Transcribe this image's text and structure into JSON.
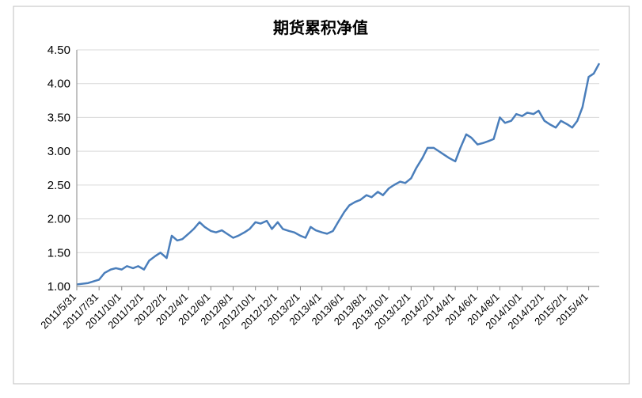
{
  "chart_data": {
    "type": "line",
    "title": "期货累积净值",
    "x": [
      "2011/6/1",
      "2011/7/1",
      "2011/7/31",
      "2011/8/15",
      "2011/9/1",
      "2011/9/15",
      "2011/10/1",
      "2011/10/15",
      "2011/11/1",
      "2011/11/15",
      "2011/12/1",
      "2011/12/15",
      "2012/1/1",
      "2012/1/15",
      "2012/2/1",
      "2012/2/15",
      "2012/3/1",
      "2012/3/15",
      "2012/4/1",
      "2012/4/15",
      "2012/5/1",
      "2012/5/15",
      "2012/6/1",
      "2012/6/15",
      "2012/7/1",
      "2012/7/15",
      "2012/8/1",
      "2012/8/15",
      "2012/9/1",
      "2012/9/15",
      "2012/10/1",
      "2012/10/15",
      "2012/11/1",
      "2012/11/15",
      "2012/12/1",
      "2012/12/15",
      "2013/1/1",
      "2013/1/15",
      "2013/2/1",
      "2013/2/15",
      "2013/3/1",
      "2013/3/15",
      "2013/4/1",
      "2013/4/15",
      "2013/5/1",
      "2013/5/15",
      "2013/6/1",
      "2013/6/15",
      "2013/7/1",
      "2013/7/15",
      "2013/8/1",
      "2013/8/15",
      "2013/9/1",
      "2013/9/15",
      "2013/10/1",
      "2013/10/15",
      "2013/11/1",
      "2013/11/15",
      "2013/12/1",
      "2013/12/15",
      "2014/1/1",
      "2014/1/15",
      "2014/2/1",
      "2014/2/15",
      "2014/3/1",
      "2014/3/15",
      "2014/4/1",
      "2014/4/15",
      "2014/5/1",
      "2014/5/15",
      "2014/6/1",
      "2014/6/15",
      "2014/7/1",
      "2014/7/15",
      "2014/8/1",
      "2014/8/15",
      "2014/9/1",
      "2014/9/15",
      "2014/10/1",
      "2014/10/15",
      "2014/11/1",
      "2014/11/15",
      "2014/12/1",
      "2014/12/15",
      "2015/1/1",
      "2015/1/15",
      "2015/2/1",
      "2015/2/15",
      "2015/3/1",
      "2015/3/15",
      "2015/4/1",
      "2015/4/15",
      "2015/4/30"
    ],
    "series": [
      {
        "name": "期货累积净值",
        "color": "#4a7ebb",
        "values": [
          1.03,
          1.05,
          1.1,
          1.2,
          1.25,
          1.27,
          1.25,
          1.3,
          1.27,
          1.3,
          1.25,
          1.38,
          1.45,
          1.5,
          1.42,
          1.75,
          1.68,
          1.7,
          1.78,
          1.85,
          1.95,
          1.88,
          1.82,
          1.8,
          1.83,
          1.78,
          1.72,
          1.75,
          1.8,
          1.85,
          1.95,
          1.93,
          1.97,
          1.85,
          1.95,
          1.85,
          1.82,
          1.8,
          1.75,
          1.72,
          1.88,
          1.83,
          1.8,
          1.78,
          1.82,
          1.95,
          2.1,
          2.2,
          2.25,
          2.28,
          2.35,
          2.32,
          2.4,
          2.35,
          2.45,
          2.5,
          2.55,
          2.53,
          2.6,
          2.75,
          2.9,
          3.05,
          3.05,
          3.0,
          2.95,
          2.9,
          2.85,
          3.05,
          3.25,
          3.2,
          3.1,
          3.12,
          3.15,
          3.18,
          3.5,
          3.42,
          3.45,
          3.55,
          3.52,
          3.57,
          3.55,
          3.6,
          3.45,
          3.4,
          3.35,
          3.45,
          3.4,
          3.35,
          3.45,
          3.65,
          4.1,
          4.15,
          4.3
        ]
      }
    ],
    "xlim": [
      "2011/5/31",
      "2015/4/30"
    ],
    "xticks": [
      "2011/5/31",
      "2011/7/31",
      "2011/10/1",
      "2011/12/1",
      "2012/2/1",
      "2012/4/1",
      "2012/6/1",
      "2012/8/1",
      "2012/10/1",
      "2012/12/1",
      "2013/2/1",
      "2013/4/1",
      "2013/6/1",
      "2013/8/1",
      "2013/10/1",
      "2013/12/1",
      "2014/2/1",
      "2014/4/1",
      "2014/6/1",
      "2014/8/1",
      "2014/10/1",
      "2014/12/1",
      "2015/2/1",
      "2015/4/1"
    ],
    "ylim": [
      1,
      4.5
    ],
    "yticks": [
      {
        "value": 1,
        "label": "1.00"
      },
      {
        "value": 1.5,
        "label": "1.50"
      },
      {
        "value": 2,
        "label": "2.00"
      },
      {
        "value": 2.5,
        "label": "2.50"
      },
      {
        "value": 3,
        "label": "3.00"
      },
      {
        "value": 3.5,
        "label": "3.50"
      },
      {
        "value": 4,
        "label": "4.00"
      },
      {
        "value": 4.5,
        "label": "4.50"
      }
    ],
    "grid": true
  }
}
